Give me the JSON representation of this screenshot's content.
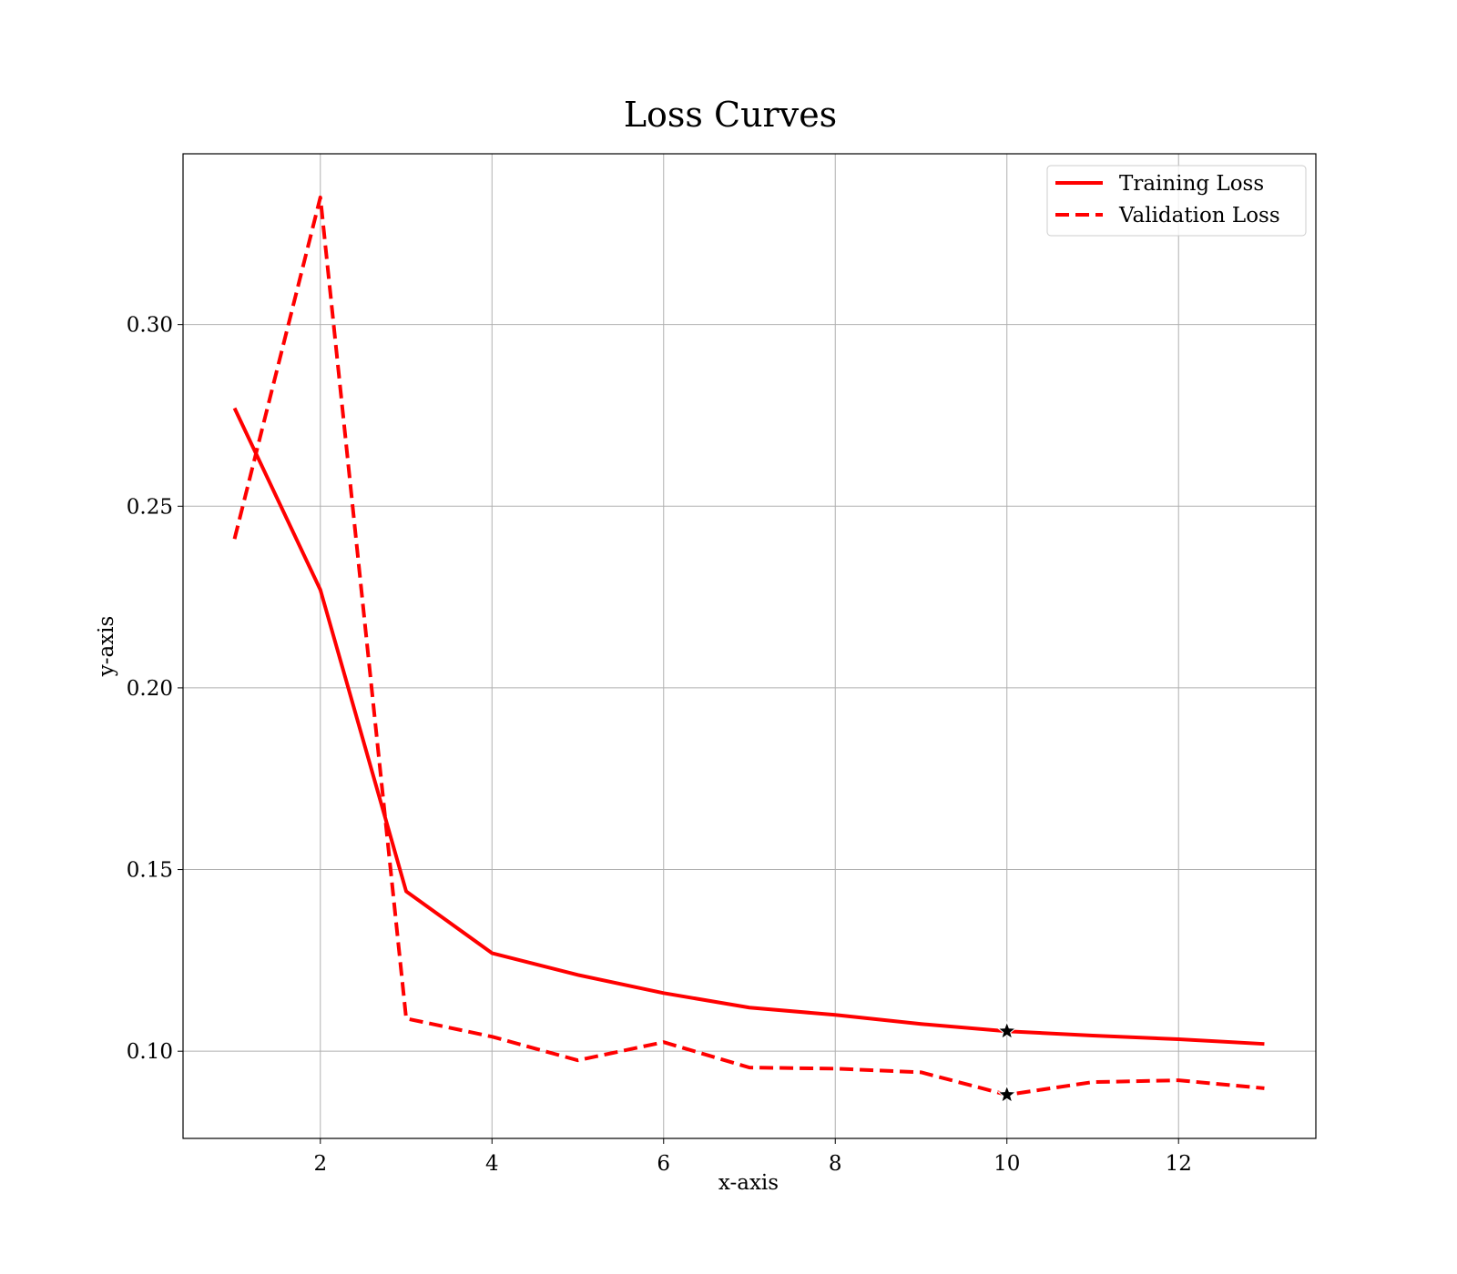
{
  "chart_data": {
    "type": "line",
    "title": "Loss Curves",
    "xlabel": "x-axis",
    "ylabel": "y-axis",
    "xlim": [
      0.4,
      13.6
    ],
    "ylim": [
      0.076,
      0.347
    ],
    "xticks": [
      2,
      4,
      6,
      8,
      10,
      12
    ],
    "xtick_labels": [
      "2",
      "4",
      "6",
      "8",
      "10",
      "12"
    ],
    "yticks": [
      0.1,
      0.15,
      0.2,
      0.25,
      0.3
    ],
    "ytick_labels": [
      "0.10",
      "0.15",
      "0.20",
      "0.25",
      "0.30"
    ],
    "grid": true,
    "legend_position": "top-right",
    "x": [
      1,
      2,
      3,
      4,
      5,
      6,
      7,
      8,
      9,
      10,
      11,
      12,
      13
    ],
    "series": [
      {
        "name": "Training Loss",
        "line_style": "solid",
        "color": "#ff0000",
        "values": [
          0.277,
          0.227,
          0.144,
          0.127,
          0.121,
          0.116,
          0.112,
          0.11,
          0.1075,
          0.1055,
          0.1043,
          0.1033,
          0.102
        ],
        "marker": {
          "x": 10,
          "y": 0.1055,
          "symbol": "star",
          "color": "#000000"
        }
      },
      {
        "name": "Validation Loss",
        "line_style": "dashed",
        "color": "#ff0000",
        "values": [
          0.241,
          0.335,
          0.109,
          0.104,
          0.0975,
          0.1025,
          0.0955,
          0.0952,
          0.0942,
          0.088,
          0.0915,
          0.092,
          0.0898
        ],
        "marker": {
          "x": 10,
          "y": 0.088,
          "symbol": "star",
          "color": "#000000"
        }
      }
    ]
  }
}
